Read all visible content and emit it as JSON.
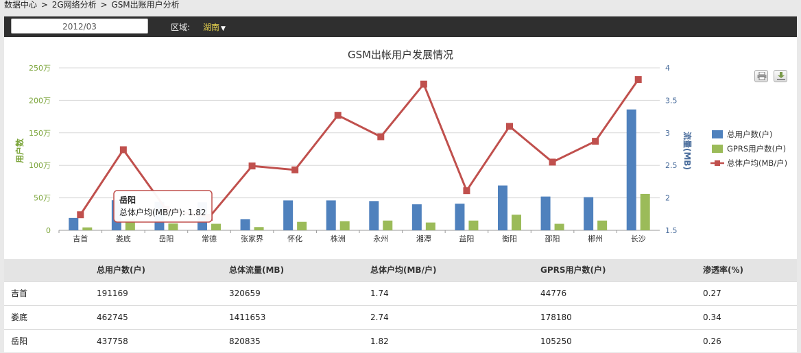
{
  "breadcrumb": [
    "数据中心",
    "2G网络分析",
    "GSM出账用户分析"
  ],
  "breadcrumb_sep": ">",
  "filter": {
    "date": "2012/03",
    "region_label": "区域:",
    "region_value": "湖南"
  },
  "chart_data": {
    "type": "bar+line",
    "title": "GSM出帐用户发展情况",
    "ylabel_left": "用户数",
    "ylabel_right": "流量(MB)",
    "categories": [
      "吉首",
      "娄底",
      "岳阳",
      "常德",
      "张家界",
      "怀化",
      "株洲",
      "永州",
      "湘潭",
      "益阳",
      "衡阳",
      "邵阳",
      "郴州",
      "长沙"
    ],
    "series": [
      {
        "name": "总用户数(户)",
        "type": "bar",
        "axis": "left",
        "color": "#4f81bd",
        "values": [
          191169,
          462745,
          437758,
          430000,
          170000,
          460000,
          460000,
          450000,
          400000,
          410000,
          690000,
          520000,
          510000,
          1860000
        ]
      },
      {
        "name": "GPRS用户数(户)",
        "type": "bar",
        "axis": "left",
        "color": "#9bbb59",
        "values": [
          44776,
          178180,
          105250,
          100000,
          50000,
          130000,
          140000,
          150000,
          120000,
          150000,
          240000,
          100000,
          150000,
          560000
        ]
      },
      {
        "name": "总体户均(MB/户)",
        "type": "line",
        "axis": "right",
        "color": "#c0504d",
        "values": [
          1.74,
          2.74,
          1.82,
          1.7,
          2.49,
          2.43,
          3.27,
          2.94,
          3.75,
          2.11,
          3.1,
          2.55,
          2.87,
          3.82
        ]
      }
    ],
    "y_left": {
      "min": 0,
      "max": 2500000,
      "ticks": [
        "0",
        "50万",
        "100万",
        "150万",
        "200万",
        "250万"
      ]
    },
    "y_right": {
      "min": 1.5,
      "max": 4,
      "ticks": [
        "1.5",
        "2",
        "2.5",
        "3",
        "3.5",
        "4"
      ]
    },
    "legend_position": "right",
    "grid": true,
    "tooltip": {
      "category_index": 2,
      "title": "岳阳",
      "text": "总体户均(MB/户): 1.82"
    }
  },
  "table": {
    "headers": [
      "",
      "总用户数(户)",
      "总体流量(MB)",
      "总体户均(MB/户)",
      "GPRS用户数(户)",
      "渗透率(%)"
    ],
    "rows": [
      [
        "吉首",
        "191169",
        "320659",
        "1.74",
        "44776",
        "0.27"
      ],
      [
        "娄底",
        "462745",
        "1411653",
        "2.74",
        "178180",
        "0.34"
      ],
      [
        "岳阳",
        "437758",
        "820835",
        "1.82",
        "105250",
        "0.26"
      ]
    ]
  },
  "colors": {
    "topbar": "#2f2f2f",
    "accent": "#e8d44d",
    "left_axis": "#7ca53b",
    "right_axis": "#4a6d9c"
  },
  "toolbar_icons": [
    "print-icon",
    "download-icon"
  ]
}
